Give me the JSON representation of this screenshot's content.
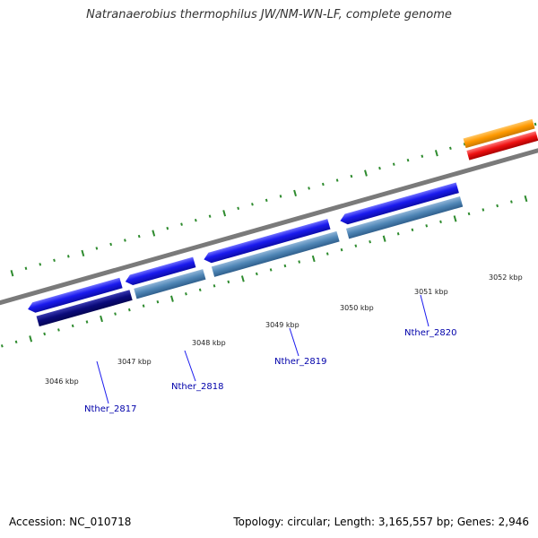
{
  "title": "Natranaerobius thermophilus JW/NM-WN-LF, complete genome",
  "accession": "Accession: NC_010718",
  "summary": "Topology: circular; Length: 3,165,557 bp; Genes: 2,946",
  "colors": {
    "backbone": "#808080",
    "tick": "#2e8b2e",
    "gene_label": "#0000aa",
    "cds_blue": "#1a1aee",
    "cds_dark_navy": "#0a0a7a",
    "cds_steel": "#4f86b6",
    "orange": "#ff9900",
    "red": "#ee1111"
  },
  "scale_labels": [
    "3046 kbp",
    "3047 kbp",
    "3048 kbp",
    "3049 kbp",
    "3050 kbp",
    "3051 kbp",
    "3052 kbp"
  ],
  "gene_labels": [
    "Nther_2817",
    "Nther_2818",
    "Nther_2819",
    "Nther_2820"
  ]
}
